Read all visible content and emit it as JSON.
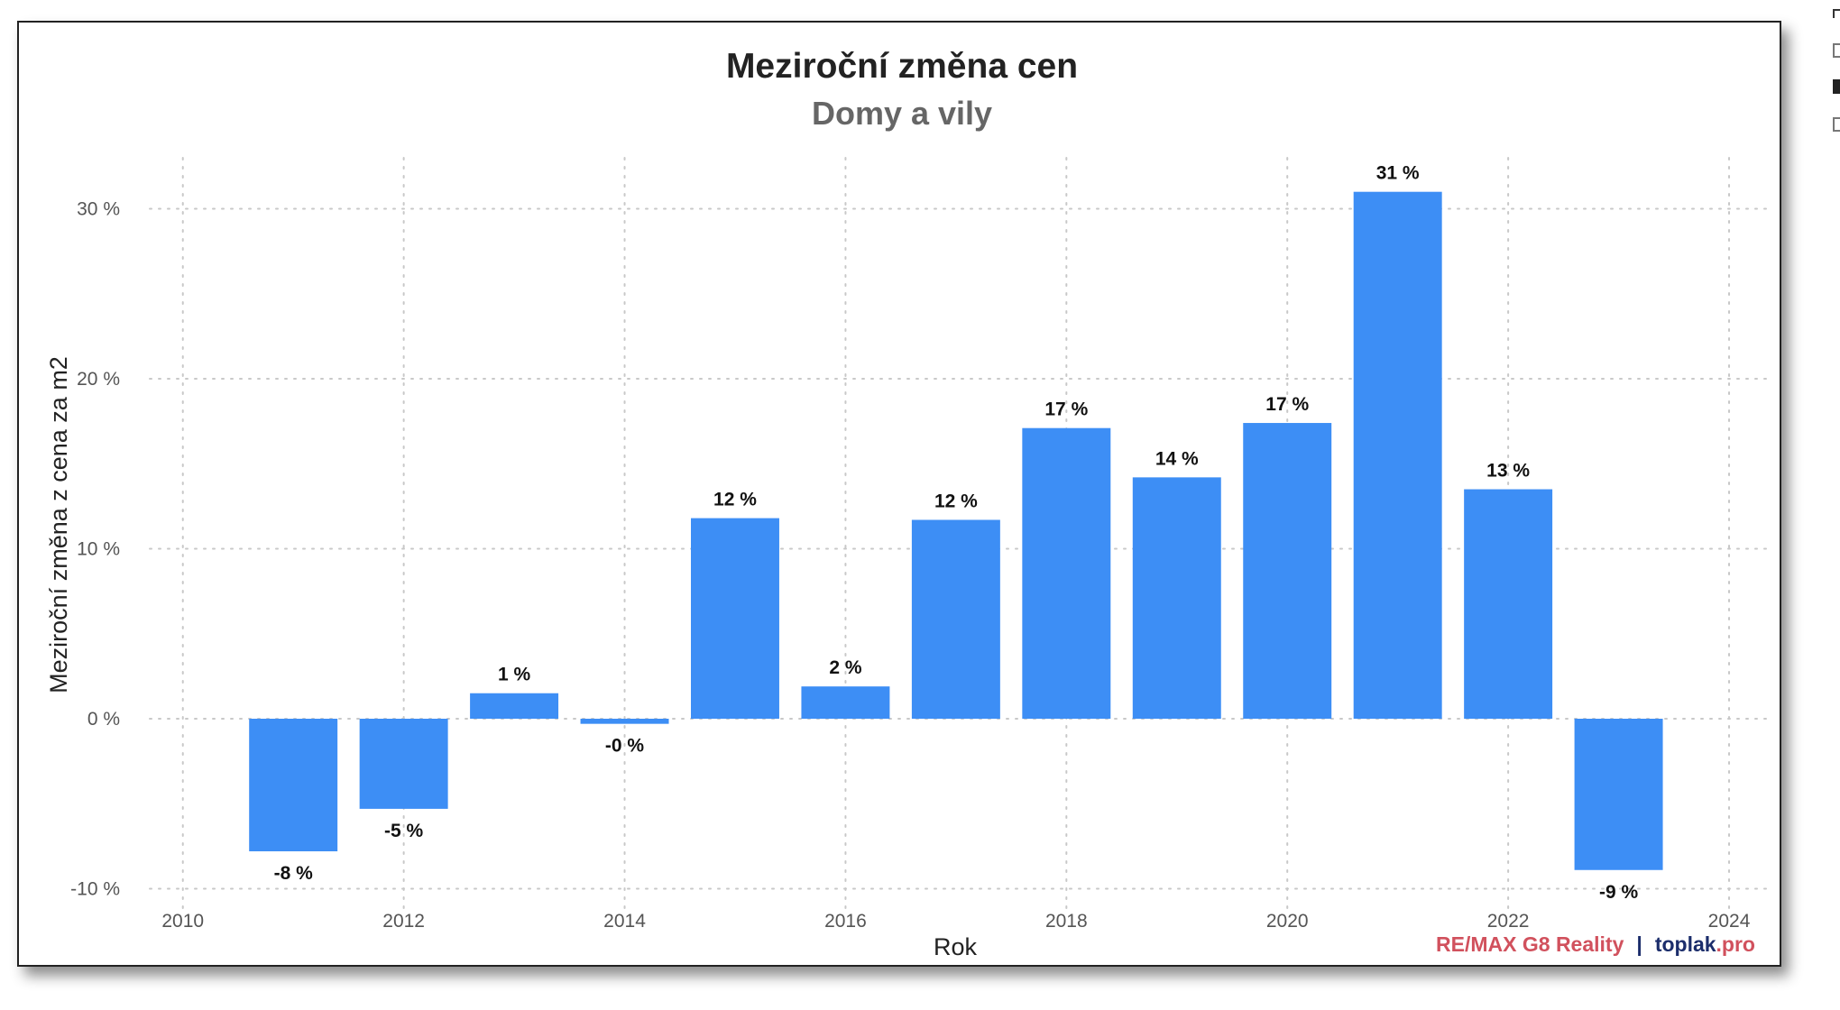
{
  "chart_data": {
    "type": "bar",
    "title": "Meziroční změna cen",
    "subtitle": "Domy a vily",
    "xlabel": "Rok",
    "ylabel": "Meziroční změna z cena za m2",
    "categories": [
      2011,
      2012,
      2013,
      2014,
      2015,
      2016,
      2017,
      2018,
      2019,
      2020,
      2021,
      2022,
      2023
    ],
    "values": [
      -7.8,
      -5.3,
      1.5,
      -0.3,
      11.8,
      1.9,
      11.7,
      17.1,
      14.2,
      17.4,
      31.0,
      13.5,
      -8.9
    ],
    "labels": [
      "-8 %",
      "-5 %",
      "1 %",
      "-0 %",
      "12 %",
      "2 %",
      "12 %",
      "17 %",
      "14 %",
      "17 %",
      "31 %",
      "13 %",
      "-9 %"
    ],
    "xlim": [
      2009.7,
      2024.4
    ],
    "ylim": [
      -11.3,
      33.0
    ],
    "x_ticks": [
      2010,
      2012,
      2014,
      2016,
      2018,
      2020,
      2022,
      2024
    ],
    "x_tick_labels": [
      "2010",
      "2012",
      "2014",
      "2016",
      "2018",
      "2020",
      "2022",
      "2024"
    ],
    "y_ticks": [
      -10,
      0,
      10,
      20,
      30
    ],
    "y_tick_labels": [
      "-10 %",
      "0 %",
      "10 %",
      "20 %",
      "30 %"
    ],
    "grid": true,
    "bar_color": "#3d8ef5"
  },
  "credit": {
    "brand": "RE/MAX G8 Reality",
    "separator": "|",
    "site_name": "toplak",
    "site_tld": ".pro"
  }
}
